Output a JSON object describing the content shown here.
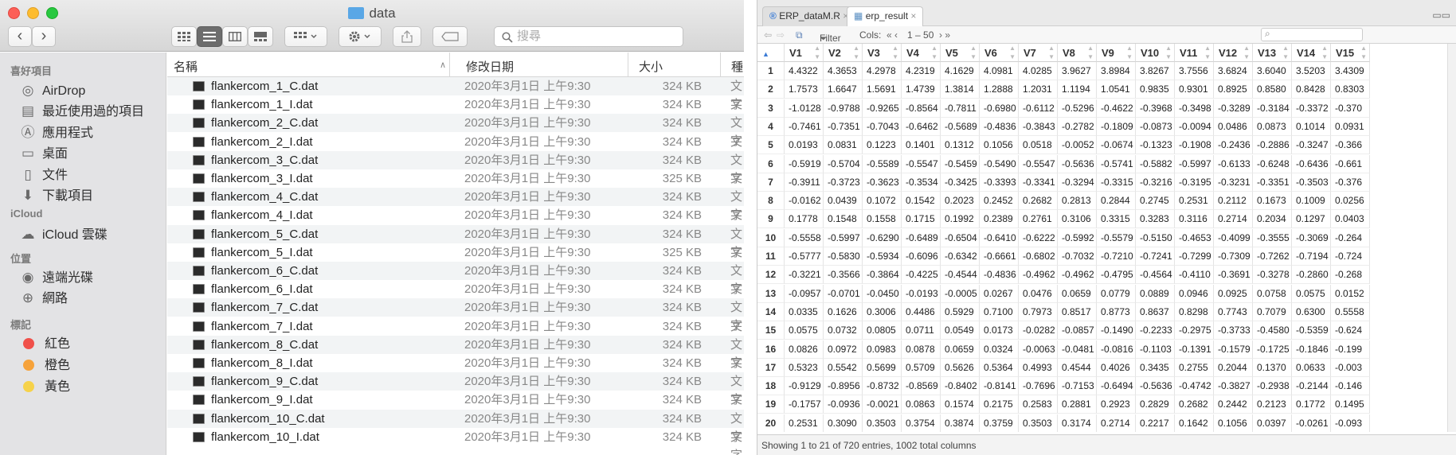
{
  "finder": {
    "title": "data",
    "search_placeholder": "搜尋",
    "nav": {
      "back": "‹",
      "forward": "›"
    },
    "sidebar": {
      "favorites_header": "喜好項目",
      "favorites": [
        {
          "label": "AirDrop",
          "icon": "airdrop-icon"
        },
        {
          "label": "最近使用過的項目",
          "icon": "recents-icon"
        },
        {
          "label": "應用程式",
          "icon": "applications-icon"
        },
        {
          "label": "桌面",
          "icon": "desktop-icon"
        },
        {
          "label": "文件",
          "icon": "documents-icon"
        },
        {
          "label": "下載項目",
          "icon": "downloads-icon"
        }
      ],
      "icloud_header": "iCloud",
      "icloud": [
        {
          "label": "iCloud 雲碟",
          "icon": "cloud-icon"
        }
      ],
      "locations_header": "位置",
      "locations": [
        {
          "label": "遠端光碟",
          "icon": "disc-icon"
        },
        {
          "label": "網路",
          "icon": "network-icon"
        }
      ],
      "tags_header": "標記",
      "tags": [
        {
          "label": "紅色",
          "color": "#f0504a"
        },
        {
          "label": "橙色",
          "color": "#f6a23a"
        },
        {
          "label": "黃色",
          "color": "#f6d24a"
        }
      ]
    },
    "columns": {
      "name": "名稱",
      "date": "修改日期",
      "size": "大小",
      "kind": "種"
    },
    "files": [
      {
        "name": "flankercom_1_C.dat",
        "date": "2020年3月1日 上午9:30",
        "size": "324 KB",
        "kind": "文字"
      },
      {
        "name": "flankercom_1_I.dat",
        "date": "2020年3月1日 上午9:30",
        "size": "324 KB",
        "kind": "文字"
      },
      {
        "name": "flankercom_2_C.dat",
        "date": "2020年3月1日 上午9:30",
        "size": "324 KB",
        "kind": "文字"
      },
      {
        "name": "flankercom_2_I.dat",
        "date": "2020年3月1日 上午9:30",
        "size": "324 KB",
        "kind": "文字"
      },
      {
        "name": "flankercom_3_C.dat",
        "date": "2020年3月1日 上午9:30",
        "size": "324 KB",
        "kind": "文字"
      },
      {
        "name": "flankercom_3_I.dat",
        "date": "2020年3月1日 上午9:30",
        "size": "325 KB",
        "kind": "文字"
      },
      {
        "name": "flankercom_4_C.dat",
        "date": "2020年3月1日 上午9:30",
        "size": "324 KB",
        "kind": "文字"
      },
      {
        "name": "flankercom_4_I.dat",
        "date": "2020年3月1日 上午9:30",
        "size": "324 KB",
        "kind": "文字"
      },
      {
        "name": "flankercom_5_C.dat",
        "date": "2020年3月1日 上午9:30",
        "size": "324 KB",
        "kind": "文字"
      },
      {
        "name": "flankercom_5_I.dat",
        "date": "2020年3月1日 上午9:30",
        "size": "325 KB",
        "kind": "文字"
      },
      {
        "name": "flankercom_6_C.dat",
        "date": "2020年3月1日 上午9:30",
        "size": "324 KB",
        "kind": "文字"
      },
      {
        "name": "flankercom_6_I.dat",
        "date": "2020年3月1日 上午9:30",
        "size": "324 KB",
        "kind": "文字"
      },
      {
        "name": "flankercom_7_C.dat",
        "date": "2020年3月1日 上午9:30",
        "size": "324 KB",
        "kind": "文字"
      },
      {
        "name": "flankercom_7_I.dat",
        "date": "2020年3月1日 上午9:30",
        "size": "324 KB",
        "kind": "文字"
      },
      {
        "name": "flankercom_8_C.dat",
        "date": "2020年3月1日 上午9:30",
        "size": "324 KB",
        "kind": "文字"
      },
      {
        "name": "flankercom_8_I.dat",
        "date": "2020年3月1日 上午9:30",
        "size": "324 KB",
        "kind": "文字"
      },
      {
        "name": "flankercom_9_C.dat",
        "date": "2020年3月1日 上午9:30",
        "size": "324 KB",
        "kind": "文字"
      },
      {
        "name": "flankercom_9_I.dat",
        "date": "2020年3月1日 上午9:30",
        "size": "324 KB",
        "kind": "文字"
      },
      {
        "name": "flankercom_10_C.dat",
        "date": "2020年3月1日 上午9:30",
        "size": "324 KB",
        "kind": "文字"
      },
      {
        "name": "flankercom_10_I.dat",
        "date": "2020年3月1日 上午9:30",
        "size": "324 KB",
        "kind": "文字"
      }
    ]
  },
  "rstudio": {
    "tabs": [
      "ERP_dataM.R",
      "erp_result"
    ],
    "toolbar": {
      "filter": "Filter",
      "cols_label": "Cols:",
      "cols_range": "1 – 50"
    },
    "columns": [
      "V1",
      "V2",
      "V3",
      "V4",
      "V5",
      "V6",
      "V7",
      "V8",
      "V9",
      "V10",
      "V11",
      "V12",
      "V13",
      "V14",
      "V15"
    ],
    "rows": [
      [
        "1",
        "4.4322",
        "4.3653",
        "4.2978",
        "4.2319",
        "4.1629",
        "4.0981",
        "4.0285",
        "3.9627",
        "3.8984",
        "3.8267",
        "3.7556",
        "3.6824",
        "3.6040",
        "3.5203",
        "3.4309"
      ],
      [
        "2",
        "1.7573",
        "1.6647",
        "1.5691",
        "1.4739",
        "1.3814",
        "1.2888",
        "1.2031",
        "1.1194",
        "1.0541",
        "0.9835",
        "0.9301",
        "0.8925",
        "0.8580",
        "0.8428",
        "0.8303"
      ],
      [
        "3",
        "-1.0128",
        "-0.9788",
        "-0.9265",
        "-0.8564",
        "-0.7811",
        "-0.6980",
        "-0.6112",
        "-0.5296",
        "-0.4622",
        "-0.3968",
        "-0.3498",
        "-0.3289",
        "-0.3184",
        "-0.3372",
        "-0.370"
      ],
      [
        "4",
        "-0.7461",
        "-0.7351",
        "-0.7043",
        "-0.6462",
        "-0.5689",
        "-0.4836",
        "-0.3843",
        "-0.2782",
        "-0.1809",
        "-0.0873",
        "-0.0094",
        "0.0486",
        "0.0873",
        "0.1014",
        "0.0931"
      ],
      [
        "5",
        "0.0193",
        "0.0831",
        "0.1223",
        "0.1401",
        "0.1312",
        "0.1056",
        "0.0518",
        "-0.0052",
        "-0.0674",
        "-0.1323",
        "-0.1908",
        "-0.2436",
        "-0.2886",
        "-0.3247",
        "-0.366"
      ],
      [
        "6",
        "-0.5919",
        "-0.5704",
        "-0.5589",
        "-0.5547",
        "-0.5459",
        "-0.5490",
        "-0.5547",
        "-0.5636",
        "-0.5741",
        "-0.5882",
        "-0.5997",
        "-0.6133",
        "-0.6248",
        "-0.6436",
        "-0.661"
      ],
      [
        "7",
        "-0.3911",
        "-0.3723",
        "-0.3623",
        "-0.3534",
        "-0.3425",
        "-0.3393",
        "-0.3341",
        "-0.3294",
        "-0.3315",
        "-0.3216",
        "-0.3195",
        "-0.3231",
        "-0.3351",
        "-0.3503",
        "-0.376"
      ],
      [
        "8",
        "-0.0162",
        "0.0439",
        "0.1072",
        "0.1542",
        "0.2023",
        "0.2452",
        "0.2682",
        "0.2813",
        "0.2844",
        "0.2745",
        "0.2531",
        "0.2112",
        "0.1673",
        "0.1009",
        "0.0256"
      ],
      [
        "9",
        "0.1778",
        "0.1548",
        "0.1558",
        "0.1715",
        "0.1992",
        "0.2389",
        "0.2761",
        "0.3106",
        "0.3315",
        "0.3283",
        "0.3116",
        "0.2714",
        "0.2034",
        "0.1297",
        "0.0403"
      ],
      [
        "10",
        "-0.5558",
        "-0.5997",
        "-0.6290",
        "-0.6489",
        "-0.6504",
        "-0.6410",
        "-0.6222",
        "-0.5992",
        "-0.5579",
        "-0.5150",
        "-0.4653",
        "-0.4099",
        "-0.3555",
        "-0.3069",
        "-0.264"
      ],
      [
        "11",
        "-0.5777",
        "-0.5830",
        "-0.5934",
        "-0.6096",
        "-0.6342",
        "-0.6661",
        "-0.6802",
        "-0.7032",
        "-0.7210",
        "-0.7241",
        "-0.7299",
        "-0.7309",
        "-0.7262",
        "-0.7194",
        "-0.724"
      ],
      [
        "12",
        "-0.3221",
        "-0.3566",
        "-0.3864",
        "-0.4225",
        "-0.4544",
        "-0.4836",
        "-0.4962",
        "-0.4962",
        "-0.4795",
        "-0.4564",
        "-0.4110",
        "-0.3691",
        "-0.3278",
        "-0.2860",
        "-0.268"
      ],
      [
        "13",
        "-0.0957",
        "-0.0701",
        "-0.0450",
        "-0.0193",
        "-0.0005",
        "0.0267",
        "0.0476",
        "0.0659",
        "0.0779",
        "0.0889",
        "0.0946",
        "0.0925",
        "0.0758",
        "0.0575",
        "0.0152"
      ],
      [
        "14",
        "0.0335",
        "0.1626",
        "0.3006",
        "0.4486",
        "0.5929",
        "0.7100",
        "0.7973",
        "0.8517",
        "0.8773",
        "0.8637",
        "0.8298",
        "0.7743",
        "0.7079",
        "0.6300",
        "0.5558"
      ],
      [
        "15",
        "0.0575",
        "0.0732",
        "0.0805",
        "0.0711",
        "0.0549",
        "0.0173",
        "-0.0282",
        "-0.0857",
        "-0.1490",
        "-0.2233",
        "-0.2975",
        "-0.3733",
        "-0.4580",
        "-0.5359",
        "-0.624"
      ],
      [
        "16",
        "0.0826",
        "0.0972",
        "0.0983",
        "0.0878",
        "0.0659",
        "0.0324",
        "-0.0063",
        "-0.0481",
        "-0.0816",
        "-0.1103",
        "-0.1391",
        "-0.1579",
        "-0.1725",
        "-0.1846",
        "-0.199"
      ],
      [
        "17",
        "0.5323",
        "0.5542",
        "0.5699",
        "0.5709",
        "0.5626",
        "0.5364",
        "0.4993",
        "0.4544",
        "0.4026",
        "0.3435",
        "0.2755",
        "0.2044",
        "0.1370",
        "0.0633",
        "-0.003"
      ],
      [
        "18",
        "-0.9129",
        "-0.8956",
        "-0.8732",
        "-0.8569",
        "-0.8402",
        "-0.8141",
        "-0.7696",
        "-0.7153",
        "-0.6494",
        "-0.5636",
        "-0.4742",
        "-0.3827",
        "-0.2938",
        "-0.2144",
        "-0.146"
      ],
      [
        "19",
        "-0.1757",
        "-0.0936",
        "-0.0021",
        "0.0863",
        "0.1574",
        "0.2175",
        "0.2583",
        "0.2881",
        "0.2923",
        "0.2829",
        "0.2682",
        "0.2442",
        "0.2123",
        "0.1772",
        "0.1495"
      ],
      [
        "20",
        "0.2531",
        "0.3090",
        "0.3503",
        "0.3754",
        "0.3874",
        "0.3759",
        "0.3503",
        "0.3174",
        "0.2714",
        "0.2217",
        "0.1642",
        "0.1056",
        "0.0397",
        "-0.0261",
        "-0.093"
      ]
    ],
    "status": "Showing 1 to 21 of 720 entries, 1002 total columns"
  }
}
